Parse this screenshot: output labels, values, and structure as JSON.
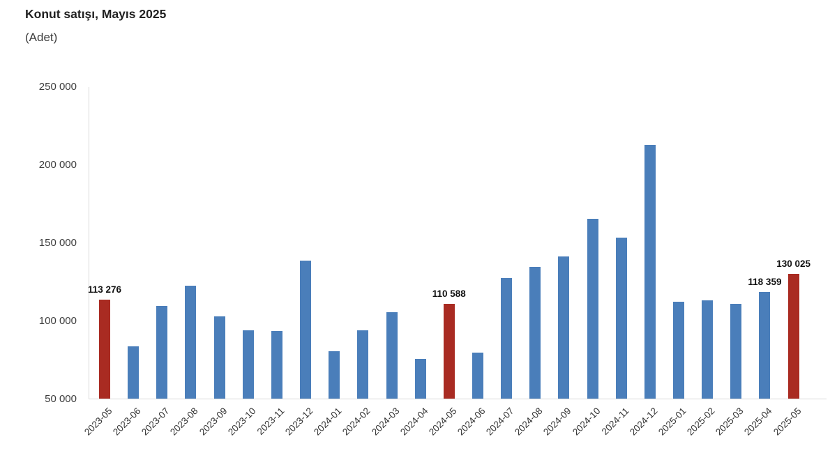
{
  "header": {
    "title": "Konut satışı, Mayıs 2025",
    "subtitle": "(Adet)"
  },
  "chart_data": {
    "type": "bar",
    "title": "Konut satışı, Mayıs 2025",
    "ylabel": "(Adet)",
    "xlabel": "",
    "categories": [
      "2023-05",
      "2023-06",
      "2023-07",
      "2023-08",
      "2023-09",
      "2023-10",
      "2023-11",
      "2023-12",
      "2024-01",
      "2024-02",
      "2024-03",
      "2024-04",
      "2024-05",
      "2024-06",
      "2024-07",
      "2024-08",
      "2024-09",
      "2024-10",
      "2024-11",
      "2024-12",
      "2025-01",
      "2025-02",
      "2025-03",
      "2025-04",
      "2025-05"
    ],
    "values": [
      113276,
      83600,
      109500,
      122100,
      102700,
      93800,
      93500,
      138600,
      80300,
      93900,
      105500,
      75600,
      110588,
      79300,
      127100,
      134200,
      140900,
      165100,
      153000,
      212600,
      112200,
      112800,
      110800,
      118359,
      130025
    ],
    "highlighted_categories": [
      "2023-05",
      "2024-05",
      "2025-05"
    ],
    "data_labels": {
      "2023-05": "113 276",
      "2024-05": "110 588",
      "2025-04": "118 359",
      "2025-05": "130 025"
    },
    "colors": {
      "bar_default": "#4a7eba",
      "bar_highlight": "#a92b22",
      "axis_line": "#d9d9d9"
    },
    "y_ticks": [
      50000,
      100000,
      150000,
      200000,
      250000
    ],
    "y_tick_labels": [
      "50 000",
      "100 000",
      "150 000",
      "200 000",
      "250 000"
    ],
    "ylim": [
      50000,
      250000
    ],
    "grid": false,
    "legend": "none"
  }
}
